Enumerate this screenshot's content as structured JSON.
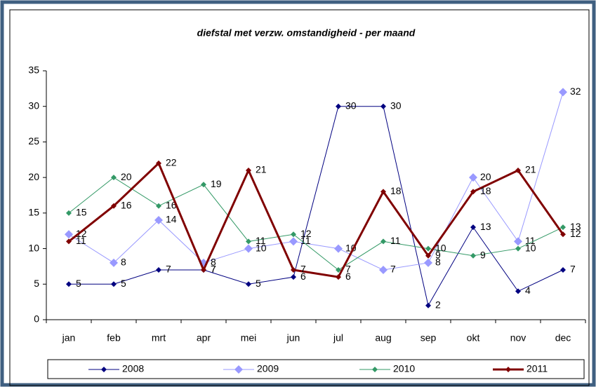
{
  "chart_data": {
    "type": "line",
    "title": "diefstal met verzw. omstandigheid - per maand",
    "categories": [
      "jan",
      "feb",
      "mrt",
      "apr",
      "mei",
      "jun",
      "jul",
      "aug",
      "sep",
      "okt",
      "nov",
      "dec"
    ],
    "series": [
      {
        "name": "2008",
        "color": "#000080",
        "values": [
          5,
          5,
          7,
          7,
          5,
          6,
          30,
          30,
          2,
          13,
          4,
          7
        ]
      },
      {
        "name": "2009",
        "color": "#9999ff",
        "values": [
          12,
          8,
          14,
          8,
          10,
          11,
          10,
          7,
          8,
          20,
          11,
          32
        ]
      },
      {
        "name": "2010",
        "color": "#339966",
        "values": [
          15,
          20,
          16,
          19,
          11,
          12,
          7,
          11,
          10,
          9,
          10,
          13
        ]
      },
      {
        "name": "2011",
        "color": "#800000",
        "values": [
          11,
          16,
          22,
          7,
          21,
          7,
          6,
          18,
          9,
          18,
          21,
          12
        ]
      }
    ],
    "ylim": [
      0,
      35
    ],
    "yticks": [
      0,
      5,
      10,
      15,
      20,
      25,
      30,
      35
    ],
    "grid": false,
    "legend": "bottom"
  }
}
